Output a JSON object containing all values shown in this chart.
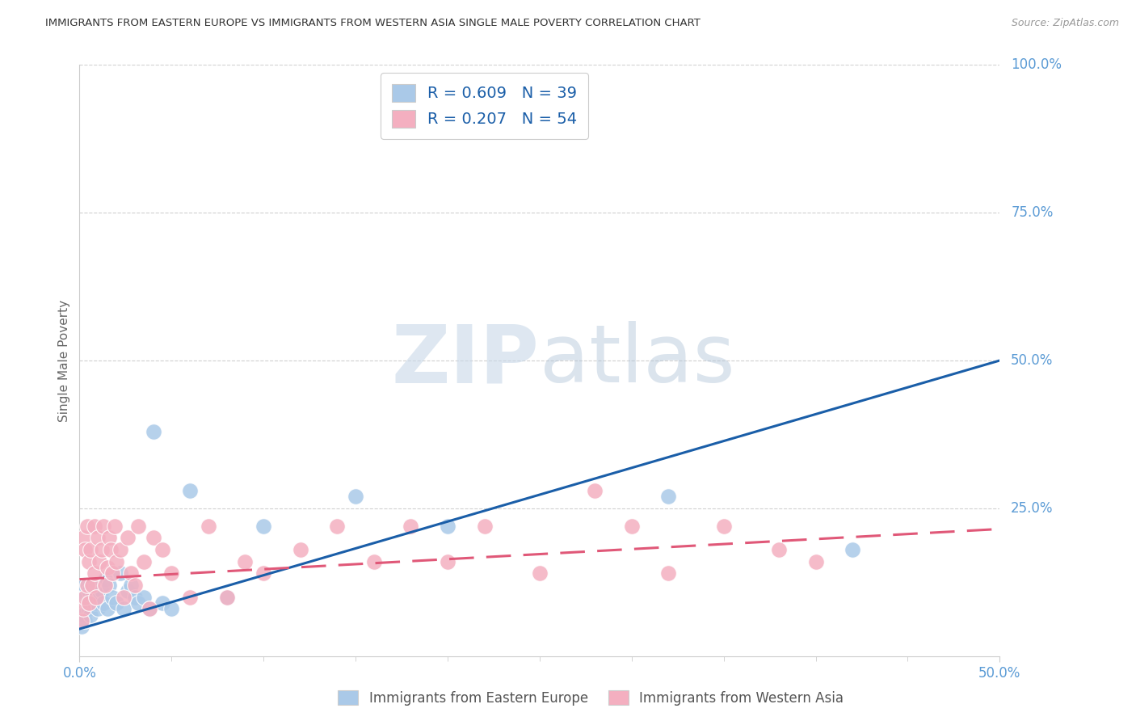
{
  "title": "IMMIGRANTS FROM EASTERN EUROPE VS IMMIGRANTS FROM WESTERN ASIA SINGLE MALE POVERTY CORRELATION CHART",
  "source": "Source: ZipAtlas.com",
  "ylabel": "Single Male Poverty",
  "xlim": [
    0,
    0.5
  ],
  "ylim": [
    0,
    1.0
  ],
  "yticks": [
    0.25,
    0.5,
    0.75,
    1.0
  ],
  "ytick_labels": [
    "25.0%",
    "50.0%",
    "75.0%",
    "100.0%"
  ],
  "xtick_labels_shown": [
    "0.0%",
    "50.0%"
  ],
  "xtick_vals_shown": [
    0.0,
    0.5
  ],
  "xtick_minor_vals": [
    0.05,
    0.1,
    0.15,
    0.2,
    0.25,
    0.3,
    0.35,
    0.4,
    0.45
  ],
  "blue_color": "#aac9e8",
  "pink_color": "#f4afc0",
  "blue_line_color": "#1a5ea8",
  "pink_line_color": "#e05878",
  "watermark_zip": "ZIP",
  "watermark_atlas": "atlas",
  "blue_scatter_x": [
    0.001,
    0.002,
    0.002,
    0.003,
    0.003,
    0.004,
    0.005,
    0.005,
    0.006,
    0.007,
    0.008,
    0.009,
    0.01,
    0.011,
    0.012,
    0.013,
    0.014,
    0.015,
    0.016,
    0.018,
    0.02,
    0.022,
    0.024,
    0.026,
    0.028,
    0.03,
    0.032,
    0.035,
    0.038,
    0.04,
    0.045,
    0.05,
    0.06,
    0.08,
    0.1,
    0.15,
    0.2,
    0.32,
    0.42
  ],
  "blue_scatter_y": [
    0.05,
    0.07,
    0.1,
    0.06,
    0.12,
    0.09,
    0.08,
    0.11,
    0.07,
    0.1,
    0.09,
    0.12,
    0.08,
    0.1,
    0.11,
    0.09,
    0.13,
    0.08,
    0.12,
    0.1,
    0.09,
    0.14,
    0.08,
    0.11,
    0.12,
    0.1,
    0.09,
    0.1,
    0.08,
    0.38,
    0.09,
    0.08,
    0.28,
    0.1,
    0.22,
    0.27,
    0.22,
    0.27,
    0.18
  ],
  "pink_scatter_x": [
    0.001,
    0.002,
    0.002,
    0.003,
    0.003,
    0.004,
    0.004,
    0.005,
    0.005,
    0.006,
    0.007,
    0.008,
    0.008,
    0.009,
    0.01,
    0.011,
    0.012,
    0.013,
    0.014,
    0.015,
    0.016,
    0.017,
    0.018,
    0.019,
    0.02,
    0.022,
    0.024,
    0.026,
    0.028,
    0.03,
    0.032,
    0.035,
    0.038,
    0.04,
    0.045,
    0.05,
    0.06,
    0.07,
    0.08,
    0.09,
    0.1,
    0.12,
    0.14,
    0.16,
    0.18,
    0.2,
    0.22,
    0.25,
    0.28,
    0.3,
    0.32,
    0.35,
    0.38,
    0.4
  ],
  "pink_scatter_y": [
    0.06,
    0.08,
    0.2,
    0.1,
    0.18,
    0.12,
    0.22,
    0.09,
    0.16,
    0.18,
    0.12,
    0.22,
    0.14,
    0.1,
    0.2,
    0.16,
    0.18,
    0.22,
    0.12,
    0.15,
    0.2,
    0.18,
    0.14,
    0.22,
    0.16,
    0.18,
    0.1,
    0.2,
    0.14,
    0.12,
    0.22,
    0.16,
    0.08,
    0.2,
    0.18,
    0.14,
    0.1,
    0.22,
    0.1,
    0.16,
    0.14,
    0.18,
    0.22,
    0.16,
    0.22,
    0.16,
    0.22,
    0.14,
    0.28,
    0.22,
    0.14,
    0.22,
    0.18,
    0.16
  ],
  "blue_line_y_start": 0.046,
  "blue_line_y_end": 0.5,
  "pink_line_y_start": 0.13,
  "pink_line_y_end": 0.215,
  "grid_color": "#d0d0d0",
  "title_color": "#333333",
  "axis_label_color": "#666666",
  "tick_color": "#5b9bd5",
  "legend_blue_label": "R = 0.609   N = 39",
  "legend_pink_label": "R = 0.207   N = 54",
  "bottom_legend_blue": "Immigrants from Eastern Europe",
  "bottom_legend_pink": "Immigrants from Western Asia"
}
